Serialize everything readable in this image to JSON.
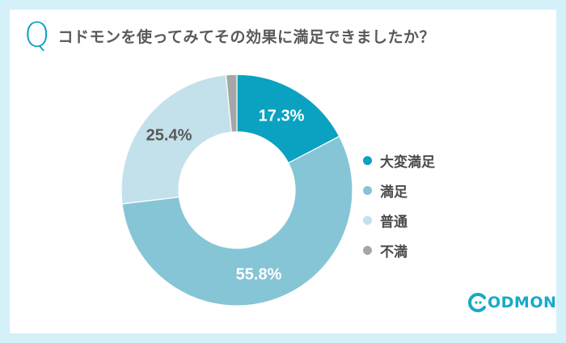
{
  "header": {
    "q_mark": "Q",
    "title": "コドモンを使ってみてその効果に満足できましたか？"
  },
  "legend": {
    "items": [
      {
        "label": "大変満足",
        "color": "#0aa2c0"
      },
      {
        "label": "満足",
        "color": "#86c5d6"
      },
      {
        "label": "普通",
        "color": "#c3e1ea"
      },
      {
        "label": "不満",
        "color": "#a6a6a6"
      }
    ]
  },
  "logo": {
    "text": "ODMON",
    "brand_color": "#17a9c9"
  },
  "chart_data": {
    "type": "pie",
    "subtype": "donut",
    "title": "コドモンを使ってみてその効果に満足できましたか？",
    "categories": [
      "大変満足",
      "満足",
      "普通",
      "不満"
    ],
    "values": [
      17.3,
      55.8,
      25.4,
      1.5
    ],
    "labels": [
      "17.3%",
      "55.8%",
      "25.4%",
      ""
    ],
    "colors": [
      "#0aa2c0",
      "#86c5d6",
      "#c3e1ea",
      "#a6a6a6"
    ],
    "label_colors": [
      "#ffffff",
      "#ffffff",
      "#595959",
      ""
    ],
    "start_angle_deg": 0,
    "direction": "clockwise",
    "legend_position": "right"
  }
}
